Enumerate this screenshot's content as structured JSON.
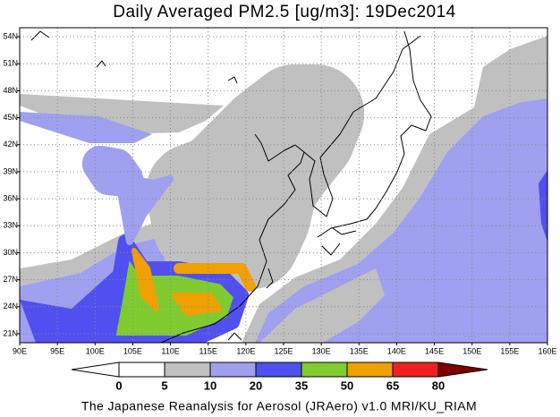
{
  "title": "Daily Averaged PM2.5 [ug/m3]: 19Dec2014",
  "map": {
    "lonlim": [
      90,
      160
    ],
    "latlim": [
      20,
      55
    ],
    "lon_ticks": [
      {
        "value": 90,
        "label": "90E"
      },
      {
        "value": 95,
        "label": "95E"
      },
      {
        "value": 100,
        "label": "100E"
      },
      {
        "value": 105,
        "label": "105E"
      },
      {
        "value": 110,
        "label": "110E"
      },
      {
        "value": 115,
        "label": "115E"
      },
      {
        "value": 120,
        "label": "120E"
      },
      {
        "value": 125,
        "label": "125E"
      },
      {
        "value": 130,
        "label": "130E"
      },
      {
        "value": 135,
        "label": "135E"
      },
      {
        "value": 140,
        "label": "140E"
      },
      {
        "value": 145,
        "label": "145E"
      },
      {
        "value": 150,
        "label": "150E"
      },
      {
        "value": 155,
        "label": "155E"
      },
      {
        "value": 160,
        "label": "160E"
      }
    ],
    "lat_ticks": [
      {
        "value": 21,
        "label": "21N"
      },
      {
        "value": 24,
        "label": "24N"
      },
      {
        "value": 27,
        "label": "27N"
      },
      {
        "value": 30,
        "label": "30N"
      },
      {
        "value": 33,
        "label": "33N"
      },
      {
        "value": 36,
        "label": "36N"
      },
      {
        "value": 39,
        "label": "39N"
      },
      {
        "value": 42,
        "label": "42N"
      },
      {
        "value": 45,
        "label": "45N"
      },
      {
        "value": 48,
        "label": "48N"
      },
      {
        "value": 51,
        "label": "51N"
      },
      {
        "value": 54,
        "label": "54N"
      }
    ],
    "grid": true
  },
  "colorbar": {
    "levels": [
      0,
      5,
      10,
      20,
      35,
      50,
      65,
      80
    ],
    "colors": [
      "#ffffff",
      "#ffffff",
      "#c0c0c0",
      "#a0a0f0",
      "#5050f0",
      "#80cc30",
      "#f0a000",
      "#f02020",
      "#800000"
    ]
  },
  "footer": "The Japanese Reanalysis for Aerosol (JRAero) v1.0 MRI/KU_RIAM"
}
